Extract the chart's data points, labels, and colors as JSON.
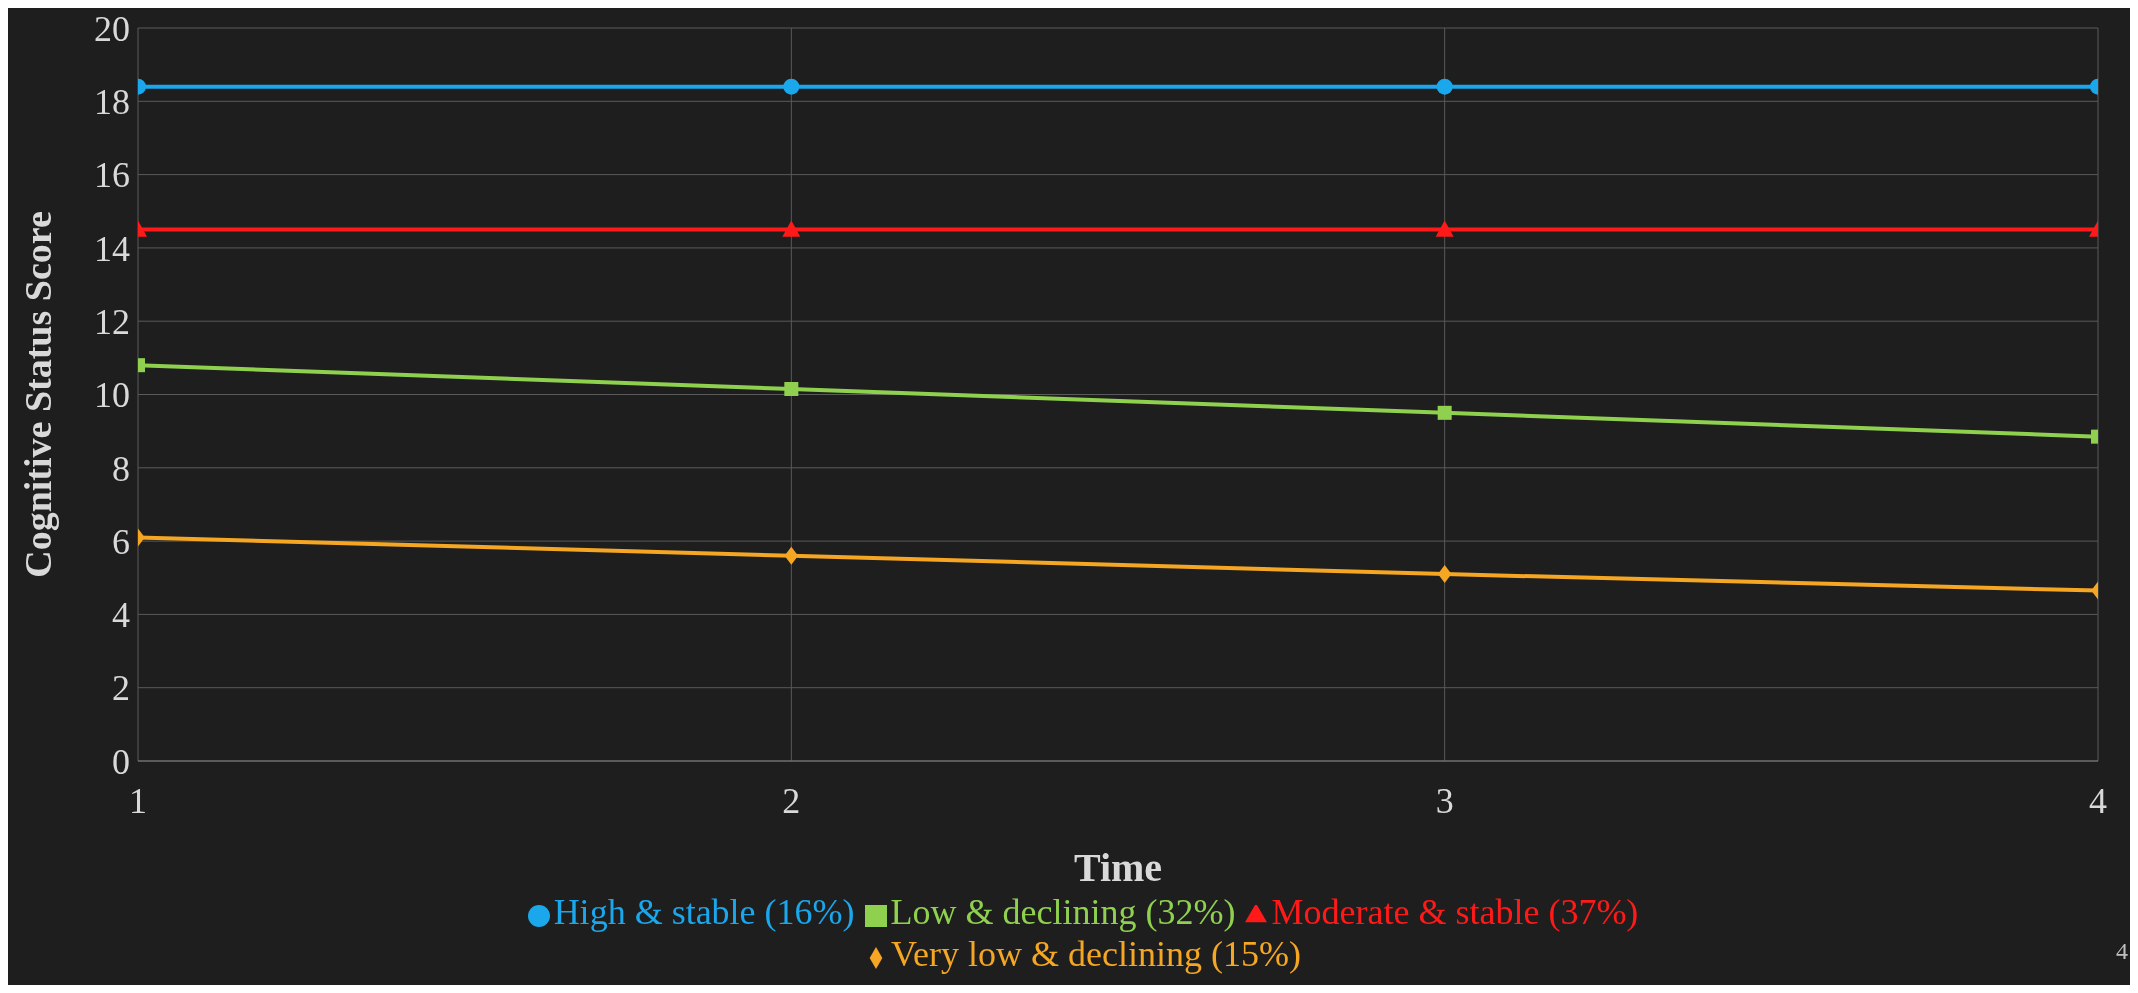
{
  "chart_data": {
    "type": "line",
    "xlabel": "Time",
    "ylabel": "Cognitive Status Score",
    "x": [
      1,
      2,
      3,
      4
    ],
    "xlim": [
      1,
      4
    ],
    "xticks": [
      1,
      2,
      3,
      4
    ],
    "ylim": [
      0,
      20
    ],
    "yticks": [
      0,
      2,
      4,
      6,
      8,
      10,
      12,
      14,
      16,
      18,
      20
    ],
    "grid": true,
    "legend": "bottom",
    "line_style": "solid",
    "series": [
      {
        "name": "Very low & declining (15%)",
        "color": "#f5a623",
        "marker": "diamond",
        "values": [
          6.1,
          5.6,
          5.1,
          4.65
        ]
      },
      {
        "name": "Low & declining (32%)",
        "color": "#8fd14f",
        "marker": "square",
        "values": [
          10.8,
          10.15,
          9.5,
          8.85
        ]
      },
      {
        "name": "Moderate & stable (37%)",
        "color": "#ff1a1a",
        "marker": "triangle",
        "values": [
          14.5,
          14.5,
          14.5,
          14.5
        ]
      },
      {
        "name": "High & stable (16%)",
        "color": "#1aa7ec",
        "marker": "circle",
        "values": [
          18.4,
          18.4,
          18.4,
          18.4
        ]
      }
    ],
    "annotations": [
      "4"
    ]
  }
}
